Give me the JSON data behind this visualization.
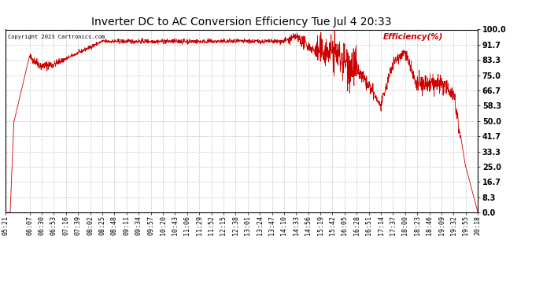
{
  "title": "Inverter DC to AC Conversion Efficiency Tue Jul 4 20:33",
  "copyright": "Copyright 2023 Cartronics.com",
  "ylabel": "Efficiency(%)",
  "line_color": "#cc0000",
  "background_color": "#ffffff",
  "grid_color": "#c8c8c8",
  "yticks": [
    0.0,
    8.3,
    16.7,
    25.0,
    33.3,
    41.7,
    50.0,
    58.3,
    66.7,
    75.0,
    83.3,
    91.7,
    100.0
  ],
  "ymin": 0.0,
  "ymax": 100.0,
  "xtick_labels": [
    "05:21",
    "06:07",
    "06:30",
    "06:53",
    "07:16",
    "07:39",
    "08:02",
    "08:25",
    "08:48",
    "09:11",
    "09:34",
    "09:57",
    "10:20",
    "10:43",
    "11:06",
    "11:29",
    "11:52",
    "12:15",
    "12:38",
    "13:01",
    "13:24",
    "13:47",
    "14:10",
    "14:33",
    "14:56",
    "15:19",
    "15:42",
    "16:05",
    "16:28",
    "16:51",
    "17:14",
    "17:37",
    "18:00",
    "18:23",
    "18:46",
    "19:09",
    "19:32",
    "19:55",
    "20:18"
  ],
  "title_fontsize": 10,
  "tick_fontsize": 6,
  "ytick_fontsize": 7
}
